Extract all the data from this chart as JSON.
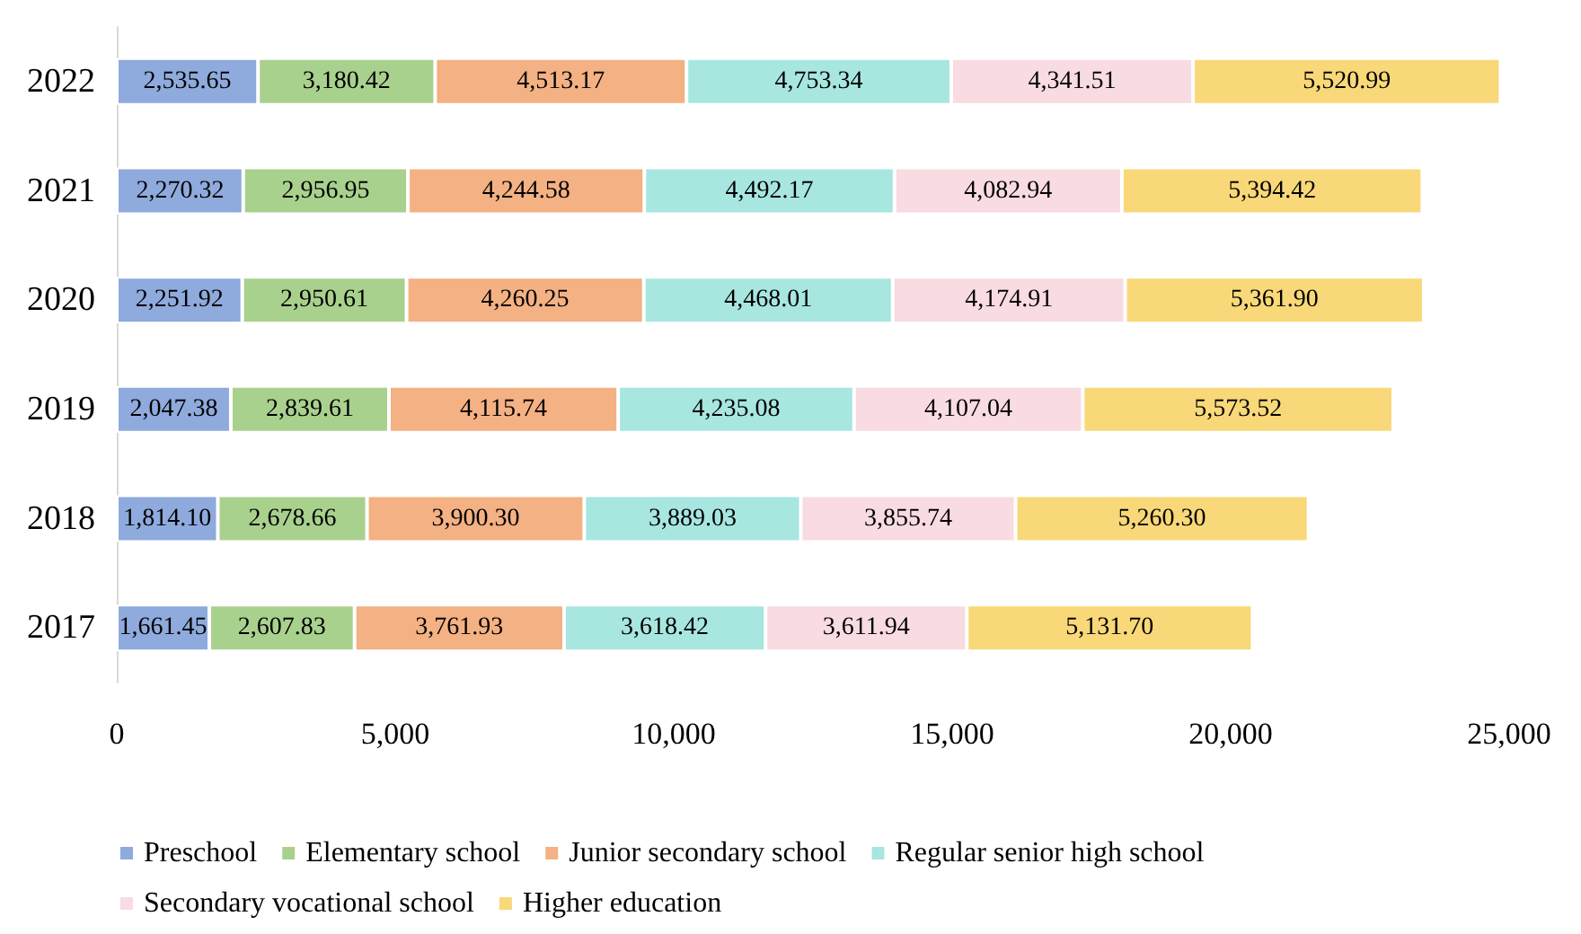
{
  "chart_data": {
    "type": "bar",
    "orientation": "horizontal",
    "stacked": true,
    "categories": [
      "2022",
      "2021",
      "2020",
      "2019",
      "2018",
      "2017"
    ],
    "xlim": [
      0,
      25000
    ],
    "xticks": [
      0,
      {
        "value": 5000,
        "label": "5,000"
      },
      {
        "value": 10000,
        "label": "10,000"
      },
      {
        "value": 15000,
        "label": "15,000"
      },
      {
        "value": 20000,
        "label": "20,000"
      },
      {
        "value": 25000,
        "label": "25,000"
      }
    ],
    "grid": false,
    "legend": "bottom",
    "series": [
      {
        "name": "Preschool",
        "color": "#8faadc",
        "values": [
          2535.65,
          2270.32,
          2251.92,
          2047.38,
          1814.1,
          1661.45
        ],
        "value_labels": [
          "2,535.65",
          "2,270.32",
          "2,251.92",
          "2,047.38",
          "1,814.10",
          "1,661.45"
        ]
      },
      {
        "name": "Elementary school",
        "color": "#a9d18e",
        "values": [
          3180.42,
          2956.95,
          2950.61,
          2839.61,
          2678.66,
          2607.83
        ],
        "value_labels": [
          "3,180.42",
          "2,956.95",
          "2,950.61",
          "2,839.61",
          "2,678.66",
          "2,607.83"
        ]
      },
      {
        "name": "Junior secondary school",
        "color": "#f4b183",
        "values": [
          4513.17,
          4244.58,
          4260.25,
          4115.74,
          3900.3,
          3761.93
        ],
        "value_labels": [
          "4,513.17",
          "4,244.58",
          "4,260.25",
          "4,115.74",
          "3,900.30",
          "3,761.93"
        ]
      },
      {
        "name": "Regular senior high school",
        "color": "#a8e6e0",
        "values": [
          4753.34,
          4492.17,
          4468.01,
          4235.08,
          3889.03,
          3618.42
        ],
        "value_labels": [
          "4,753.34",
          "4,492.17",
          "4,468.01",
          "4,235.08",
          "3,889.03",
          "3,618.42"
        ]
      },
      {
        "name": "Secondary vocational school",
        "color": "#f9dbe2",
        "values": [
          4341.51,
          4082.94,
          4174.91,
          4107.04,
          3855.74,
          3611.94
        ],
        "value_labels": [
          "4,341.51",
          "4,082.94",
          "4,174.91",
          "4,107.04",
          "3,855.74",
          "3,611.94"
        ]
      },
      {
        "name": "Higher education",
        "color": "#f8d878",
        "values": [
          5520.99,
          5394.42,
          5361.9,
          5573.52,
          5260.3,
          5131.7
        ],
        "value_labels": [
          "5,520.99",
          "5,394.42",
          "5,361.90",
          "5,573.52",
          "5,260.30",
          "5,131.70"
        ]
      }
    ]
  }
}
